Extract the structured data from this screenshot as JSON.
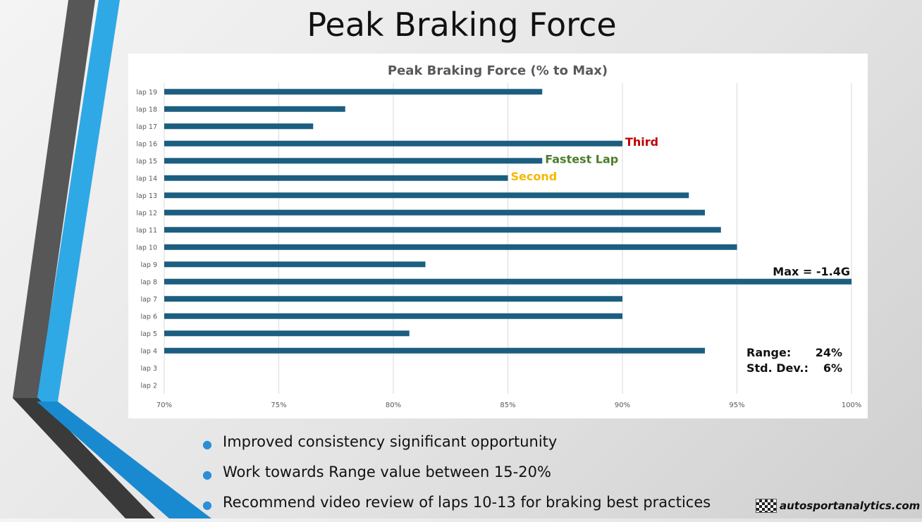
{
  "slide": {
    "title": "Peak Braking Force"
  },
  "bullets": [
    "Improved consistency significant opportunity",
    "Work towards Range value between 15-20%",
    "Recommend video review of laps 10-13 for braking best practices"
  ],
  "brand": {
    "text": "autosportanalytics.com",
    "icon": "checkered-flag-icon"
  },
  "colors": {
    "bar": "#1b5e80",
    "third": "#c00000",
    "fastest": "#4a7d2a",
    "second": "#f5b800",
    "accent": "#2c8ed6"
  },
  "chart_data": {
    "type": "bar",
    "orientation": "horizontal",
    "title": "Peak Braking Force (% to Max)",
    "categories": [
      "lap 19",
      "lap 18",
      "lap 17",
      "lap 16",
      "lap 15",
      "lap 14",
      "lap 13",
      "lap 12",
      "lap 11",
      "lap 10",
      "lap 9",
      "lap 8",
      "lap 7",
      "lap 6",
      "lap 5",
      "lap 4",
      "lap 3",
      "lap 2"
    ],
    "values": [
      86.5,
      77.9,
      76.5,
      90.0,
      86.5,
      85.0,
      92.9,
      93.6,
      94.3,
      95.0,
      81.4,
      100.0,
      90.0,
      90.0,
      80.7,
      93.6,
      null,
      null
    ],
    "xlim": [
      70,
      100
    ],
    "xticks": [
      "70%",
      "75%",
      "80%",
      "85%",
      "90%",
      "95%",
      "100%"
    ],
    "grid": true,
    "annotations": [
      {
        "category": "lap 16",
        "text": "Third",
        "color": "#c00000"
      },
      {
        "category": "lap 15",
        "text": "Fastest Lap",
        "color": "#4a7d2a"
      },
      {
        "category": "lap 14",
        "text": "Second",
        "color": "#f5b800"
      },
      {
        "category": "lap 8",
        "text": "Max = -1.4G",
        "color": "#111111"
      }
    ],
    "stats": [
      {
        "label": "Range:",
        "value": "24%"
      },
      {
        "label": "Std. Dev.:",
        "value": "6%"
      }
    ]
  }
}
